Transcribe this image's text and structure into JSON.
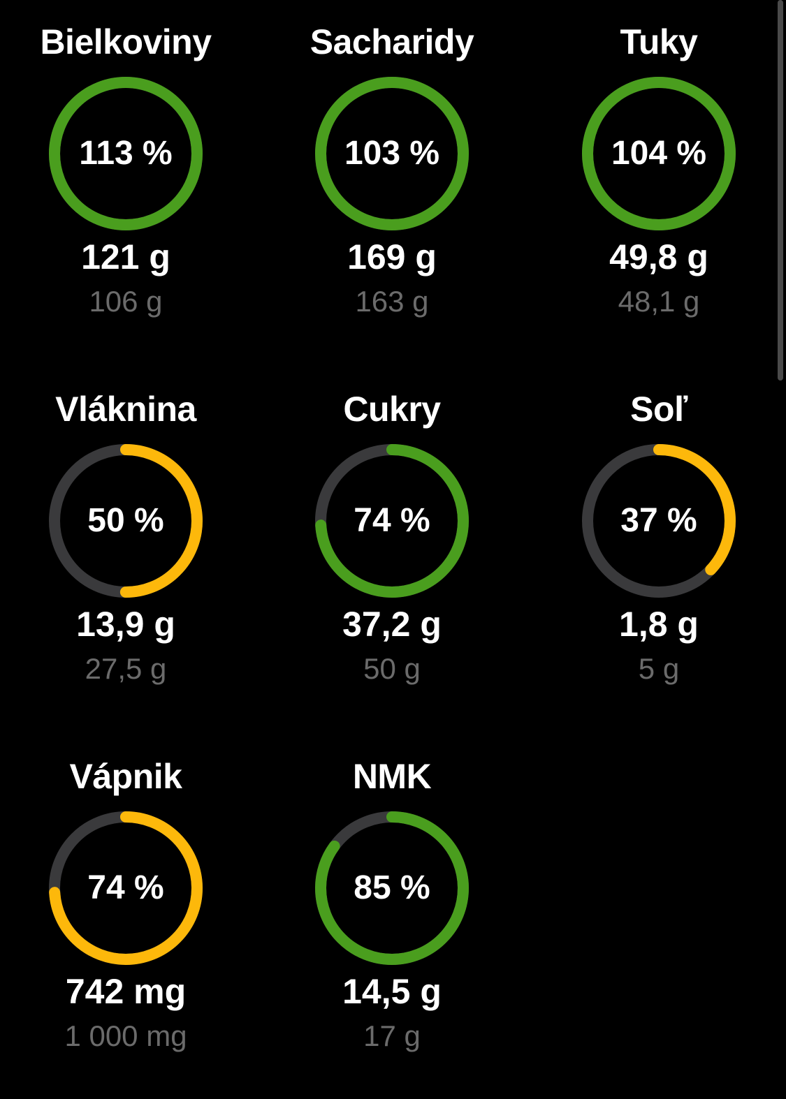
{
  "colors": {
    "background": "#000000",
    "track": "#3a3a3c",
    "green": "#4a9e1e",
    "yellow": "#fdb80b",
    "target_text": "#6b6b6b"
  },
  "nutrients": [
    {
      "name": "Bielkoviny",
      "percent_label": "113 %",
      "percent": 113,
      "color": "green",
      "value": "121 g",
      "target": "106 g"
    },
    {
      "name": "Sacharidy",
      "percent_label": "103 %",
      "percent": 103,
      "color": "green",
      "value": "169 g",
      "target": "163 g"
    },
    {
      "name": "Tuky",
      "percent_label": "104 %",
      "percent": 104,
      "color": "green",
      "value": "49,8 g",
      "target": "48,1 g"
    },
    {
      "name": "Vláknina",
      "percent_label": "50 %",
      "percent": 50,
      "color": "yellow",
      "value": "13,9 g",
      "target": "27,5 g"
    },
    {
      "name": "Cukry",
      "percent_label": "74 %",
      "percent": 74,
      "color": "green",
      "value": "37,2 g",
      "target": "50 g"
    },
    {
      "name": "Soľ",
      "percent_label": "37 %",
      "percent": 37,
      "color": "yellow",
      "value": "1,8 g",
      "target": "5 g"
    },
    {
      "name": "Vápnik",
      "percent_label": "74 %",
      "percent": 74,
      "color": "yellow",
      "value": "742 mg",
      "target": "1 000 mg"
    },
    {
      "name": "NMK",
      "percent_label": "85 %",
      "percent": 85,
      "color": "green",
      "value": "14,5 g",
      "target": "17 g"
    }
  ]
}
